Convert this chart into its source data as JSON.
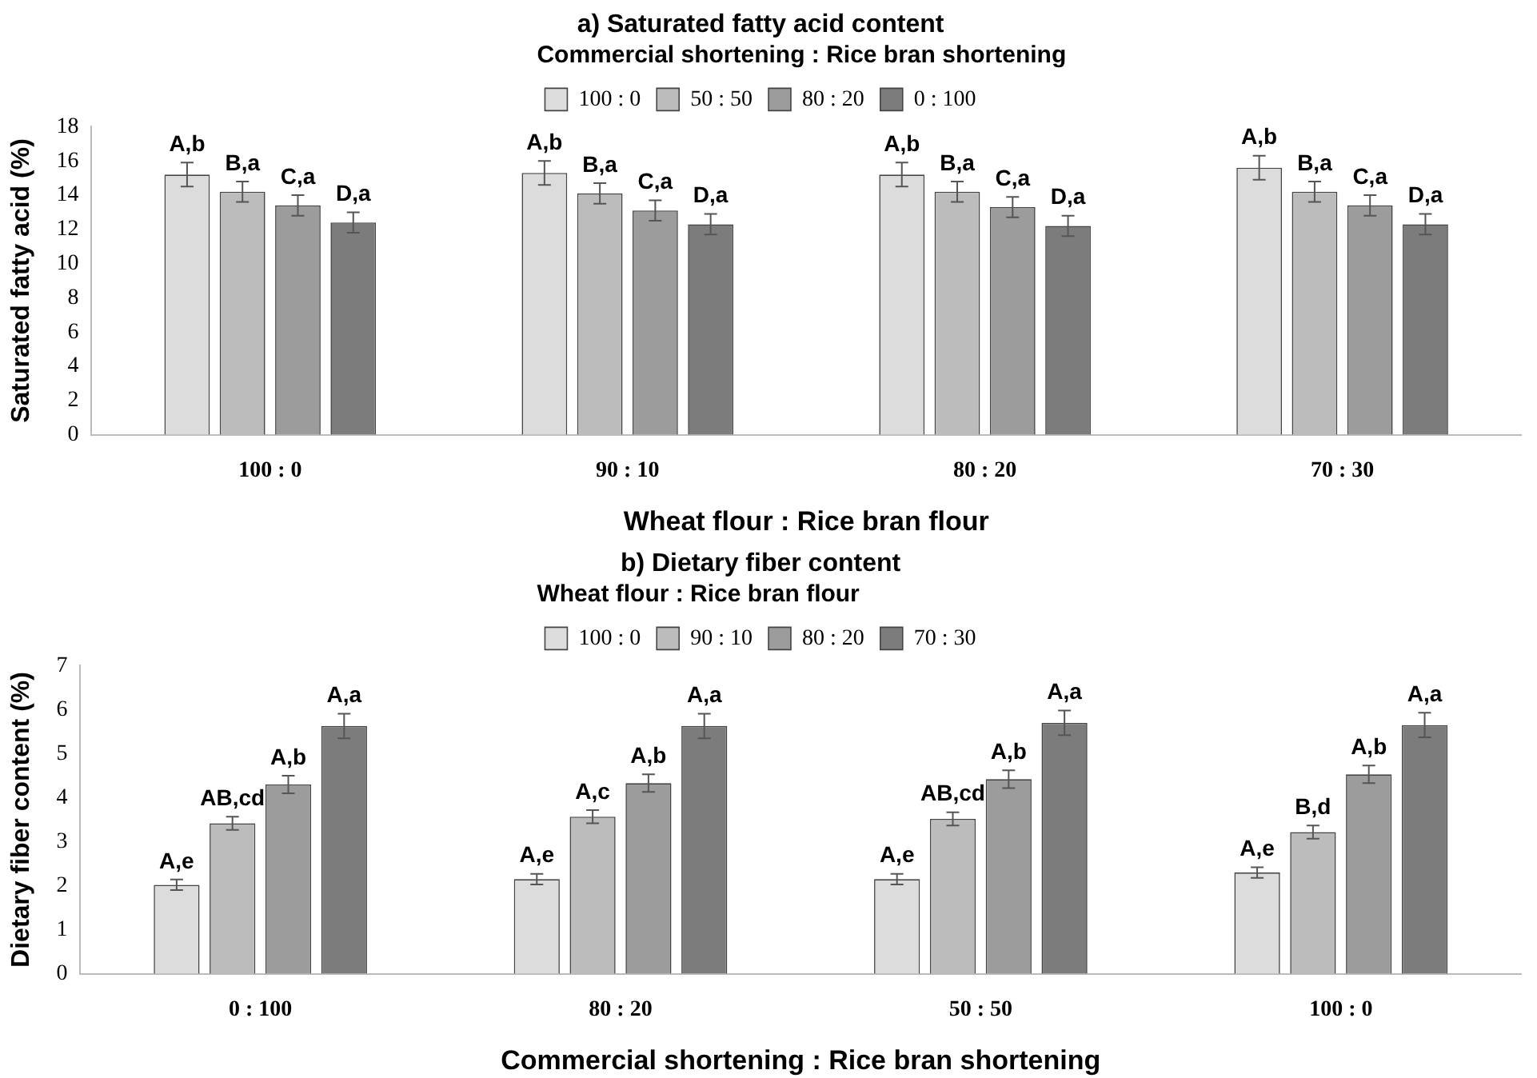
{
  "chart_data": [
    {
      "type": "bar",
      "title": "a) Saturated fatty acid content",
      "legend_title": "Commercial shortening : Rice bran shortening",
      "xlabel": "Wheat flour : Rice bran flour",
      "ylabel": "Saturated fatty acid (%)",
      "categories": [
        "100 : 0",
        "90 : 10",
        "80 : 20",
        "70 : 30"
      ],
      "ylim": [
        0,
        18
      ],
      "yticks": [
        0,
        2,
        4,
        6,
        8,
        10,
        12,
        14,
        16,
        18
      ],
      "grid": false,
      "legend": "top",
      "series": [
        {
          "name": "100 : 0",
          "color": "#dcdcdc",
          "values": [
            15.2,
            15.3,
            15.2,
            15.6
          ],
          "errors": [
            0.7,
            0.7,
            0.7,
            0.7
          ],
          "value_labels": [
            "A,b",
            "A,b",
            "A,b",
            "A,b"
          ]
        },
        {
          "name": "50 : 50",
          "color": "#bcbcbc",
          "values": [
            14.2,
            14.1,
            14.2,
            14.2
          ],
          "errors": [
            0.6,
            0.6,
            0.6,
            0.6
          ],
          "value_labels": [
            "B,a",
            "B,a",
            "B,a",
            "B,a"
          ]
        },
        {
          "name": "80 : 20",
          "color": "#9c9c9c",
          "values": [
            13.4,
            13.1,
            13.3,
            13.4
          ],
          "errors": [
            0.6,
            0.6,
            0.6,
            0.6
          ],
          "value_labels": [
            "C,a",
            "C,a",
            "C,a",
            "C,a"
          ]
        },
        {
          "name": "0 : 100",
          "color": "#7c7c7c",
          "values": [
            12.4,
            12.3,
            12.2,
            12.3
          ],
          "errors": [
            0.6,
            0.6,
            0.6,
            0.6
          ],
          "value_labels": [
            "D,a",
            "D,a",
            "D,a",
            "D,a"
          ]
        }
      ]
    },
    {
      "type": "bar",
      "title": "b) Dietary fiber content",
      "legend_title": "Wheat flour : Rice bran flour",
      "xlabel": "Commercial shortening : Rice bran shortening",
      "ylabel": "Dietary fiber content (%)",
      "categories": [
        "0 : 100",
        "80 : 20",
        "50 : 50",
        "100 : 0"
      ],
      "ylim": [
        0,
        7
      ],
      "yticks": [
        0,
        1,
        2,
        3,
        4,
        5,
        6,
        7
      ],
      "grid": false,
      "legend": "top",
      "series": [
        {
          "name": "100 : 0",
          "color": "#dcdcdc",
          "values": [
            2.02,
            2.15,
            2.15,
            2.3
          ],
          "errors": [
            0.12,
            0.12,
            0.12,
            0.12
          ],
          "value_labels": [
            "A,e",
            "A,e",
            "A,e",
            "A,e"
          ]
        },
        {
          "name": "90 : 10",
          "color": "#bcbcbc",
          "values": [
            3.42,
            3.57,
            3.52,
            3.22
          ],
          "errors": [
            0.15,
            0.15,
            0.15,
            0.15
          ],
          "value_labels": [
            "AB,cd",
            "A,c",
            "AB,cd",
            "B,d"
          ]
        },
        {
          "name": "80 : 20",
          "color": "#9c9c9c",
          "values": [
            4.3,
            4.33,
            4.42,
            4.53
          ],
          "errors": [
            0.2,
            0.2,
            0.2,
            0.2
          ],
          "value_labels": [
            "A,b",
            "A,b",
            "A,b",
            "A,b"
          ]
        },
        {
          "name": "70 : 30",
          "color": "#7c7c7c",
          "values": [
            5.63,
            5.63,
            5.7,
            5.65
          ],
          "errors": [
            0.28,
            0.28,
            0.28,
            0.28
          ],
          "value_labels": [
            "A,a",
            "A,a",
            "A,a",
            "A,a"
          ]
        }
      ]
    }
  ]
}
